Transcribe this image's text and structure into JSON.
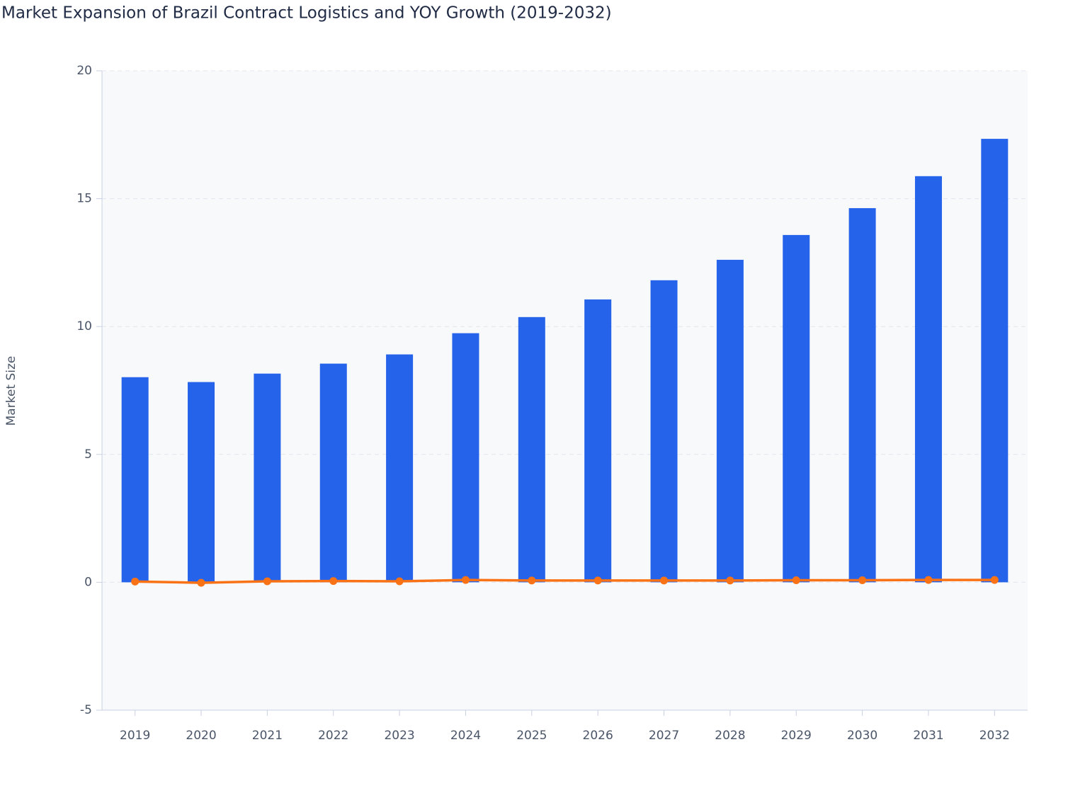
{
  "chart_data": {
    "type": "bar",
    "title": "Market Expansion of Brazil Contract Logistics and YOY Growth (2019-2032)",
    "y_label": "Market Size",
    "categories": [
      "2019",
      "2020",
      "2021",
      "2022",
      "2023",
      "2024",
      "2025",
      "2026",
      "2027",
      "2028",
      "2029",
      "2030",
      "2031",
      "2032"
    ],
    "series": [
      {
        "type": "bar",
        "color": "#2563eb",
        "values": [
          8.02,
          7.83,
          8.16,
          8.55,
          8.91,
          9.74,
          10.37,
          11.06,
          11.81,
          12.61,
          13.58,
          14.63,
          15.88,
          17.34
        ]
      },
      {
        "type": "line",
        "color": "#f97316",
        "values": [
          0.03,
          -0.02,
          0.04,
          0.05,
          0.04,
          0.09,
          0.07,
          0.07,
          0.07,
          0.07,
          0.08,
          0.08,
          0.09,
          0.09
        ]
      }
    ],
    "ylim": [
      -5,
      20
    ],
    "yticks": [
      -5,
      0,
      5,
      10,
      15,
      20
    ],
    "grid": true
  }
}
